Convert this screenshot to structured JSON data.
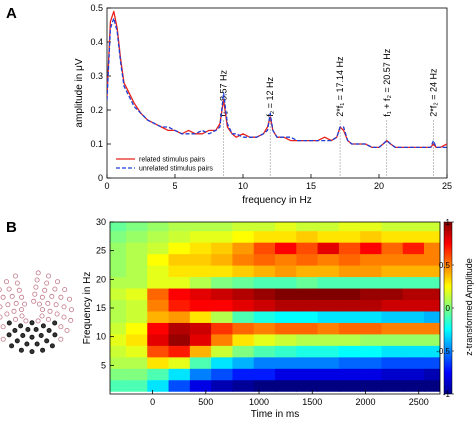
{
  "figure": {
    "panel_a_letter": "A",
    "panel_b_letter": "B"
  },
  "chart_data": [
    {
      "type": "line",
      "panel": "A",
      "title": "",
      "xlabel": "frequency in Hz",
      "ylabel": "amplitude in μV",
      "xlim": [
        0,
        25
      ],
      "ylim": [
        0,
        0.5
      ],
      "xticks": [
        0,
        5,
        10,
        15,
        20,
        25
      ],
      "xtick_labels": [
        "0",
        "5",
        "10",
        "15",
        "20",
        "25"
      ],
      "yticks": [
        0,
        0.1,
        0.2,
        0.3,
        0.4,
        0.5
      ],
      "ytick_labels": [
        "0",
        "0.1",
        "0.2",
        "0.3",
        "0.4",
        "0.5"
      ],
      "grid": false,
      "legend_position": "bottom-left",
      "annotations": [
        {
          "x": 8.57,
          "label": "f₁ = 8.57 Hz"
        },
        {
          "x": 12,
          "label": "f₂ = 12 Hz"
        },
        {
          "x": 17.14,
          "label": "2*f₁ = 17.14 Hz"
        },
        {
          "x": 20.57,
          "label": "f₁ + f₂ = 20.57 Hz"
        },
        {
          "x": 24,
          "label": "2*f₂ = 24 Hz"
        }
      ],
      "series": [
        {
          "name": "related stimulus pairs",
          "color": "#e8211b",
          "style": "solid",
          "x": [
            0,
            0.25,
            0.5,
            0.75,
            1,
            1.25,
            1.5,
            2,
            2.5,
            3,
            3.5,
            4,
            4.5,
            5,
            5.5,
            6,
            6.5,
            7,
            7.5,
            8,
            8.3,
            8.57,
            8.85,
            9.2,
            9.5,
            10,
            10.5,
            11,
            11.5,
            11.8,
            12,
            12.2,
            12.5,
            13,
            13.5,
            14,
            14.5,
            15,
            15.5,
            16,
            16.5,
            16.9,
            17.14,
            17.4,
            17.7,
            18,
            18.5,
            19,
            19.5,
            20,
            20.3,
            20.57,
            20.85,
            21.2,
            21.5,
            22,
            22.5,
            23,
            23.5,
            23.8,
            24,
            24.2,
            24.5,
            25
          ],
          "values": [
            0.24,
            0.46,
            0.49,
            0.44,
            0.35,
            0.28,
            0.26,
            0.22,
            0.19,
            0.17,
            0.16,
            0.15,
            0.14,
            0.14,
            0.13,
            0.14,
            0.13,
            0.13,
            0.14,
            0.14,
            0.16,
            0.23,
            0.15,
            0.13,
            0.12,
            0.13,
            0.12,
            0.12,
            0.13,
            0.15,
            0.18,
            0.14,
            0.12,
            0.12,
            0.11,
            0.11,
            0.11,
            0.11,
            0.11,
            0.12,
            0.11,
            0.12,
            0.15,
            0.14,
            0.11,
            0.1,
            0.1,
            0.1,
            0.09,
            0.09,
            0.1,
            0.11,
            0.1,
            0.09,
            0.09,
            0.09,
            0.09,
            0.09,
            0.09,
            0.09,
            0.1,
            0.09,
            0.09,
            0.1
          ]
        },
        {
          "name": "unrelated stimulus pairs",
          "color": "#1f3fd6",
          "style": "dashed",
          "x": [
            0,
            0.25,
            0.5,
            0.75,
            1,
            1.25,
            1.5,
            2,
            2.5,
            3,
            3.5,
            4,
            4.5,
            5,
            5.5,
            6,
            6.5,
            7,
            7.5,
            8,
            8.3,
            8.57,
            8.85,
            9.2,
            9.5,
            10,
            10.5,
            11,
            11.5,
            11.8,
            12,
            12.2,
            12.5,
            13,
            13.5,
            14,
            14.5,
            15,
            15.5,
            16,
            16.5,
            16.9,
            17.14,
            17.4,
            17.7,
            18,
            18.5,
            19,
            19.5,
            20,
            20.3,
            20.57,
            20.85,
            21.2,
            21.5,
            22,
            22.5,
            23,
            23.5,
            23.8,
            24,
            24.2,
            24.5,
            25
          ],
          "values": [
            0.23,
            0.44,
            0.47,
            0.43,
            0.34,
            0.27,
            0.25,
            0.21,
            0.19,
            0.17,
            0.16,
            0.15,
            0.15,
            0.14,
            0.13,
            0.13,
            0.13,
            0.14,
            0.13,
            0.14,
            0.15,
            0.25,
            0.16,
            0.13,
            0.13,
            0.12,
            0.12,
            0.12,
            0.13,
            0.14,
            0.19,
            0.14,
            0.12,
            0.12,
            0.12,
            0.11,
            0.11,
            0.11,
            0.11,
            0.11,
            0.11,
            0.12,
            0.15,
            0.15,
            0.11,
            0.1,
            0.1,
            0.1,
            0.09,
            0.09,
            0.1,
            0.11,
            0.1,
            0.09,
            0.09,
            0.09,
            0.09,
            0.09,
            0.09,
            0.09,
            0.11,
            0.09,
            0.09,
            0.09
          ]
        }
      ]
    },
    {
      "type": "heatmap",
      "panel": "B",
      "title": "",
      "xlabel": "Time in ms",
      "ylabel": "Frequency in Hz",
      "xlim": [
        -400,
        2700
      ],
      "ylim": [
        0,
        30
      ],
      "xticks": [
        0,
        500,
        1000,
        1500,
        2000,
        2500
      ],
      "xtick_labels": [
        "0",
        "500",
        "1000",
        "1500",
        "2000",
        "2500"
      ],
      "yticks": [
        5,
        10,
        15,
        20,
        25,
        30
      ],
      "ytick_labels": [
        "5",
        "10",
        "15",
        "20",
        "25",
        "30"
      ],
      "colorbar_label": "z-transformed Amplitude",
      "colorbar_range": [
        -1,
        1
      ],
      "colorbar_ticks": [
        1,
        0.5,
        0,
        -0.5,
        -1
      ],
      "colorbar_tick_labels": [
        "1",
        "0.5",
        "0",
        "-0.5",
        "-1"
      ],
      "colormap": "jet",
      "time_ms": [
        -350,
        -150,
        50,
        250,
        450,
        650,
        850,
        1050,
        1250,
        1450,
        1650,
        1850,
        2050,
        2250,
        2450,
        2650
      ],
      "freq_hz": [
        1.5,
        3.5,
        5.5,
        7.5,
        9.5,
        11.5,
        13.5,
        15.5,
        17.5,
        19.5,
        21.5,
        23.5,
        25.5,
        27.5,
        29.5
      ],
      "z_by_freq": [
        [
          -0.1,
          -0.1,
          -0.3,
          -0.6,
          -0.8,
          -0.9,
          -0.95,
          -1.0,
          -1.0,
          -1.0,
          -1.0,
          -1.0,
          -1.0,
          -1.0,
          -1.0,
          -1.0
        ],
        [
          0.0,
          0.0,
          -0.1,
          -0.3,
          -0.5,
          -0.6,
          -0.7,
          -0.7,
          -0.8,
          -0.8,
          -0.8,
          -0.8,
          -0.8,
          -0.85,
          -0.85,
          -0.9
        ],
        [
          0.1,
          0.1,
          0.3,
          0.2,
          -0.1,
          -0.3,
          -0.4,
          -0.5,
          -0.5,
          -0.5,
          -0.5,
          -0.55,
          -0.55,
          -0.6,
          -0.6,
          -0.6
        ],
        [
          0.15,
          0.2,
          0.6,
          0.7,
          0.4,
          0.15,
          0.0,
          -0.1,
          -0.15,
          -0.2,
          -0.2,
          -0.25,
          -0.25,
          -0.3,
          -0.3,
          -0.3
        ],
        [
          0.2,
          0.3,
          0.8,
          0.95,
          0.8,
          0.5,
          0.3,
          0.2,
          0.15,
          0.1,
          0.1,
          0.1,
          0.05,
          0.05,
          0.05,
          0.05
        ],
        [
          0.15,
          0.25,
          0.75,
          0.9,
          0.85,
          0.65,
          0.55,
          0.5,
          0.55,
          0.55,
          0.5,
          0.55,
          0.55,
          0.5,
          0.5,
          0.5
        ],
        [
          0.1,
          0.15,
          0.4,
          0.45,
          0.3,
          0.1,
          -0.1,
          -0.2,
          -0.25,
          -0.25,
          -0.3,
          -0.3,
          -0.3,
          -0.35,
          -0.35,
          -0.4
        ],
        [
          0.1,
          0.15,
          0.5,
          0.7,
          0.75,
          0.75,
          0.8,
          0.85,
          0.9,
          0.9,
          0.9,
          0.9,
          0.9,
          0.85,
          0.85,
          0.85
        ],
        [
          0.15,
          0.2,
          0.55,
          0.75,
          0.8,
          0.85,
          0.9,
          0.95,
          1.0,
          1.0,
          1.0,
          1.0,
          0.95,
          0.95,
          0.9,
          0.9
        ],
        [
          0.1,
          0.1,
          0.2,
          0.2,
          0.1,
          0.0,
          -0.05,
          -0.1,
          -0.1,
          -0.05,
          -0.1,
          -0.1,
          -0.1,
          -0.1,
          -0.1,
          -0.1
        ],
        [
          0.05,
          0.1,
          0.2,
          0.3,
          0.3,
          0.3,
          0.35,
          0.4,
          0.45,
          0.4,
          0.4,
          0.45,
          0.45,
          0.4,
          0.4,
          0.4
        ],
        [
          0.05,
          0.1,
          0.25,
          0.35,
          0.35,
          0.4,
          0.5,
          0.55,
          0.5,
          0.55,
          0.5,
          0.55,
          0.5,
          0.5,
          0.5,
          0.5
        ],
        [
          0.05,
          0.1,
          0.15,
          0.25,
          0.3,
          0.35,
          0.45,
          0.6,
          0.75,
          0.6,
          0.8,
          0.6,
          0.75,
          0.55,
          0.7,
          0.5
        ],
        [
          0.0,
          0.05,
          0.1,
          0.15,
          0.2,
          0.2,
          0.25,
          0.3,
          0.3,
          0.35,
          0.3,
          0.3,
          0.35,
          0.3,
          0.3,
          0.3
        ],
        [
          -0.05,
          0.0,
          0.05,
          0.1,
          0.1,
          0.1,
          0.15,
          0.15,
          0.2,
          0.15,
          0.15,
          0.2,
          0.2,
          0.15,
          0.15,
          0.15
        ]
      ]
    }
  ]
}
